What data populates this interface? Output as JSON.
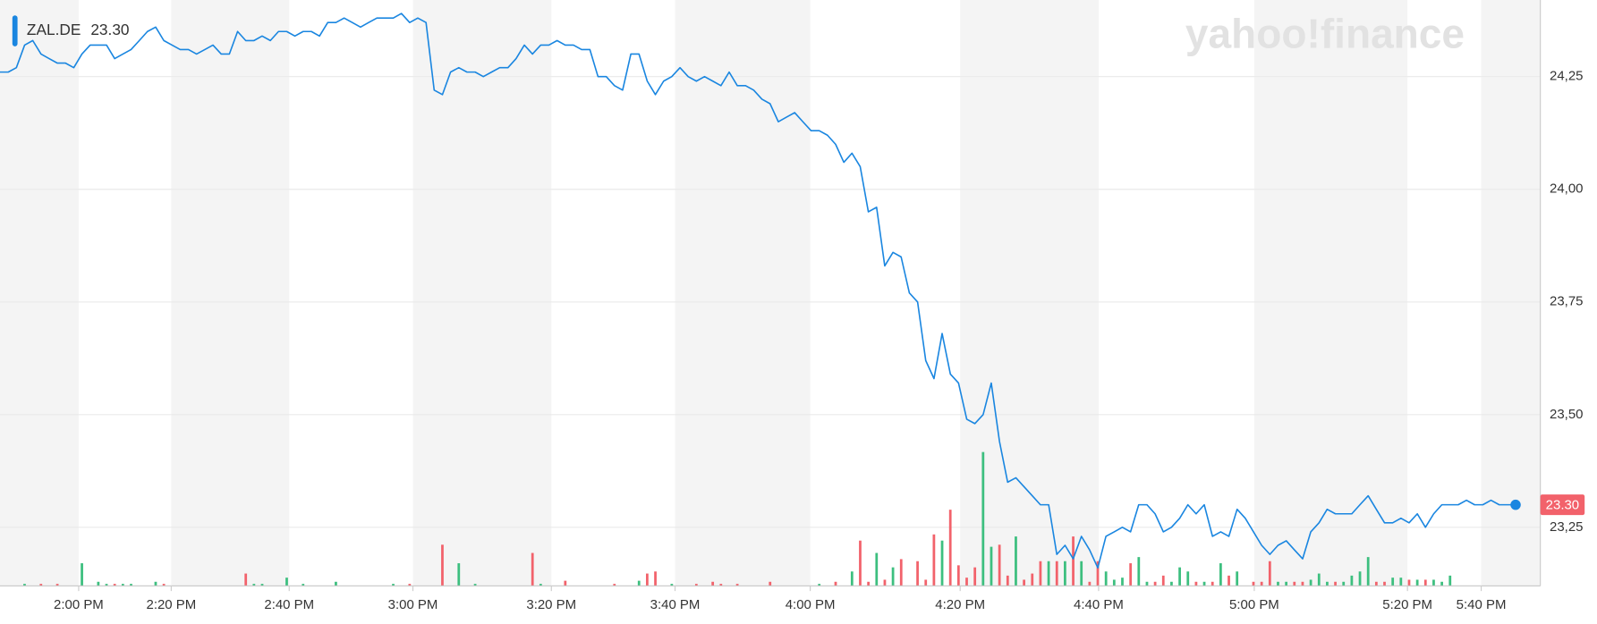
{
  "chart_data": {
    "type": "line",
    "watermark": "yahoo!finance",
    "last_price": {
      "value": 23.3,
      "label": "23.30"
    },
    "series": [
      {
        "name": "ZAL.DE",
        "color": "#1a86e0",
        "values": [
          24.26,
          24.26,
          24.27,
          24.32,
          24.33,
          24.3,
          24.29,
          24.28,
          24.28,
          24.27,
          24.3,
          24.32,
          24.32,
          24.32,
          24.29,
          24.3,
          24.31,
          24.33,
          24.35,
          24.36,
          24.33,
          24.32,
          24.31,
          24.31,
          24.3,
          24.31,
          24.32,
          24.3,
          24.3,
          24.35,
          24.33,
          24.33,
          24.34,
          24.33,
          24.35,
          24.35,
          24.34,
          24.35,
          24.35,
          24.34,
          24.37,
          24.37,
          24.38,
          24.37,
          24.36,
          24.37,
          24.38,
          24.38,
          24.38,
          24.39,
          24.37,
          24.38,
          24.37,
          24.22,
          24.21,
          24.26,
          24.27,
          24.26,
          24.26,
          24.25,
          24.26,
          24.27,
          24.27,
          24.29,
          24.32,
          24.3,
          24.32,
          24.32,
          24.33,
          24.32,
          24.32,
          24.31,
          24.31,
          24.25,
          24.25,
          24.23,
          24.22,
          24.3,
          24.3,
          24.24,
          24.21,
          24.24,
          24.25,
          24.27,
          24.25,
          24.24,
          24.25,
          24.24,
          24.23,
          24.26,
          24.23,
          24.23,
          24.22,
          24.2,
          24.19,
          24.15,
          24.16,
          24.17,
          24.15,
          24.13,
          24.13,
          24.12,
          24.1,
          24.06,
          24.08,
          24.05,
          23.95,
          23.96,
          23.83,
          23.86,
          23.85,
          23.77,
          23.75,
          23.62,
          23.58,
          23.68,
          23.59,
          23.57,
          23.49,
          23.48,
          23.5,
          23.57,
          23.44,
          23.35,
          23.36,
          23.34,
          23.32,
          23.3,
          23.3,
          23.19,
          23.21,
          23.18,
          23.23,
          23.2,
          23.16,
          23.23,
          23.24,
          23.25,
          23.24,
          23.3,
          23.3,
          23.28,
          23.24,
          23.25,
          23.27,
          23.3,
          23.28,
          23.3,
          23.23,
          23.24,
          23.23,
          23.29,
          23.27,
          23.24,
          23.21,
          23.19,
          23.21,
          23.22,
          23.2,
          23.18,
          23.24,
          23.26,
          23.29,
          23.28,
          23.28,
          23.28,
          23.3,
          23.32,
          23.29,
          23.26,
          23.26,
          23.27,
          23.26,
          23.28,
          23.25,
          23.28,
          23.3,
          23.3,
          23.3,
          23.31,
          23.3,
          23.3,
          23.31,
          23.3,
          23.3,
          23.3
        ]
      }
    ],
    "volume": {
      "up_color": "#3dbf7f",
      "down_color": "#f2626b",
      "lim": [
        0,
        569
      ],
      "values": [
        null,
        null,
        null,
        2,
        null,
        2,
        null,
        2,
        null,
        null,
        22,
        null,
        4,
        2,
        2,
        2,
        2,
        null,
        null,
        4,
        2,
        null,
        null,
        null,
        null,
        null,
        null,
        null,
        null,
        null,
        12,
        2,
        2,
        null,
        null,
        8,
        null,
        2,
        null,
        null,
        null,
        4,
        null,
        null,
        null,
        null,
        null,
        null,
        2,
        null,
        2,
        null,
        null,
        null,
        40,
        null,
        22,
        null,
        2,
        null,
        null,
        null,
        null,
        null,
        null,
        32,
        2,
        null,
        null,
        5,
        null,
        null,
        null,
        null,
        null,
        2,
        null,
        null,
        5,
        12,
        14,
        null,
        2,
        null,
        null,
        2,
        null,
        4,
        2,
        null,
        2,
        null,
        null,
        null,
        4,
        null,
        null,
        null,
        null,
        null,
        2,
        null,
        4,
        null,
        14,
        44,
        4,
        32,
        6,
        18,
        26,
        null,
        24,
        6,
        50,
        44,
        74,
        20,
        8,
        18,
        130,
        38,
        40,
        10,
        48,
        6,
        12,
        24,
        24,
        24,
        24,
        48,
        24,
        4,
        24,
        14,
        6,
        8,
        22,
        28,
        4,
        4,
        10,
        4,
        18,
        14,
        4,
        4,
        4,
        22,
        10,
        14,
        null,
        4,
        4,
        24,
        4,
        4,
        4,
        4,
        6,
        12,
        4,
        4,
        4,
        10,
        14,
        28,
        4,
        4,
        8,
        8,
        6,
        6,
        6,
        6,
        4,
        10,
        null,
        null,
        null,
        null,
        null,
        null,
        null,
        null
      ]
    },
    "xlim": [
      0,
      185
    ],
    "ylim": [
      23.12,
      24.42
    ],
    "yticks": [
      {
        "value": 23.25,
        "label": "23,25"
      },
      {
        "value": 23.5,
        "label": "23,50"
      },
      {
        "value": 23.75,
        "label": "23,75"
      },
      {
        "value": 24,
        "label": "24,00"
      },
      {
        "value": 24.25,
        "label": "24,25"
      }
    ],
    "xticks": [
      {
        "value": 9.6,
        "label": "2:00 PM"
      },
      {
        "value": 20.9,
        "label": "2:20 PM"
      },
      {
        "value": 35.3,
        "label": "2:40 PM"
      },
      {
        "value": 50.4,
        "label": "3:00 PM"
      },
      {
        "value": 67.3,
        "label": "3:20 PM"
      },
      {
        "value": 82.4,
        "label": "3:40 PM"
      },
      {
        "value": 98.9,
        "label": "4:00 PM"
      },
      {
        "value": 117.2,
        "label": "4:20 PM"
      },
      {
        "value": 134.1,
        "label": "4:40 PM"
      },
      {
        "value": 153.1,
        "label": "5:00 PM"
      },
      {
        "value": 171.8,
        "label": "5:20 PM"
      },
      {
        "value": 180.8,
        "label": "5:40 PM"
      }
    ],
    "grid": true
  }
}
